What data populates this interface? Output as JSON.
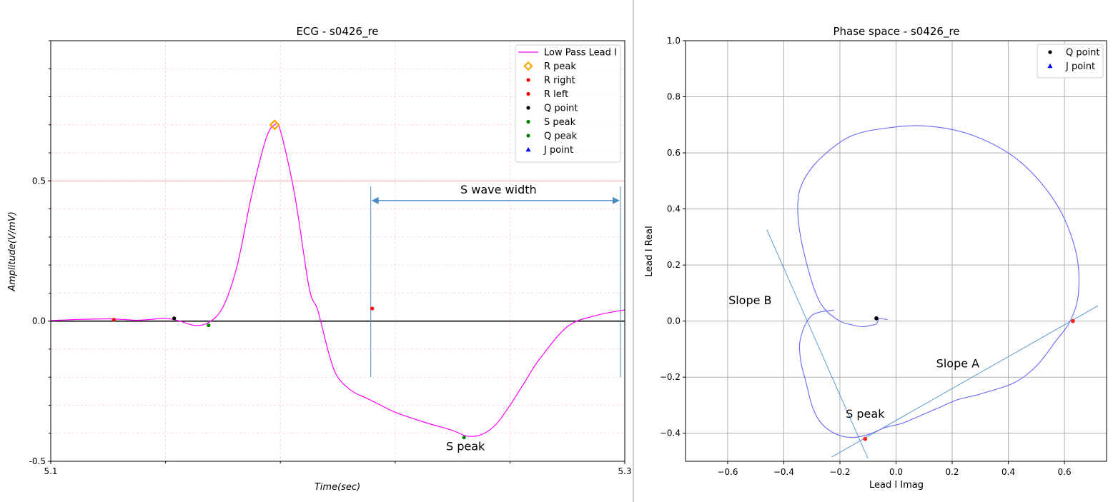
{
  "chart_data": [
    {
      "type": "line",
      "title": "ECG - s0426_re",
      "xlabel": "Time(sec)",
      "ylabel": "Amplitude(V/mV)",
      "xlim": [
        5.1,
        5.3
      ],
      "ylim": [
        -0.5,
        1.0
      ],
      "xticks": [
        "5.1",
        "5.3"
      ],
      "yticks": [
        "-0.5",
        "0.0",
        "0.5"
      ],
      "grid": true,
      "legend_position": "top-right",
      "series": [
        {
          "name": "Low Pass Lead I",
          "color": "#ff00ff",
          "style": "line",
          "x": [
            5.1,
            5.11,
            5.12,
            5.125,
            5.13,
            5.135,
            5.14,
            5.145,
            5.15,
            5.155,
            5.16,
            5.165,
            5.17,
            5.175,
            5.178,
            5.18,
            5.185,
            5.19,
            5.193,
            5.197,
            5.2,
            5.205,
            5.21,
            5.215,
            5.22,
            5.23,
            5.24,
            5.245,
            5.25,
            5.255,
            5.26,
            5.265,
            5.27,
            5.28,
            5.29,
            5.3
          ],
          "y": [
            0.002,
            0.006,
            0.008,
            0.006,
            0.003,
            0.006,
            0.01,
            0.0,
            -0.015,
            -0.005,
            0.05,
            0.2,
            0.45,
            0.65,
            0.7,
            0.68,
            0.45,
            0.12,
            0.04,
            -0.12,
            -0.2,
            -0.25,
            -0.275,
            -0.3,
            -0.325,
            -0.36,
            -0.39,
            -0.41,
            -0.405,
            -0.37,
            -0.3,
            -0.22,
            -0.14,
            -0.02,
            0.02,
            0.04
          ]
        },
        {
          "name": "R peak",
          "color": "#ffa500",
          "style": "diamond",
          "x": [
            5.178
          ],
          "y": [
            0.7
          ]
        },
        {
          "name": "R right",
          "color": "#ff0000",
          "style": "dot",
          "x": [
            5.212
          ],
          "y": [
            0.045
          ]
        },
        {
          "name": "R left",
          "color": "#ff0000",
          "style": "dot",
          "x": [
            5.122
          ],
          "y": [
            0.005
          ]
        },
        {
          "name": "Q point",
          "color": "#000000",
          "style": "dot",
          "x": [
            5.143
          ],
          "y": [
            0.01
          ]
        },
        {
          "name": "S peak",
          "color": "#008000",
          "style": "dot",
          "x": [
            5.244
          ],
          "y": [
            -0.415
          ]
        },
        {
          "name": "Q peak",
          "color": "#008000",
          "style": "dot",
          "x": [
            5.155
          ],
          "y": [
            -0.015
          ]
        },
        {
          "name": "J point",
          "color": "#0000ff",
          "style": "triangle",
          "x": [],
          "y": []
        }
      ],
      "hlines": [
        {
          "y": 0.0,
          "color": "#000000"
        },
        {
          "y": 0.5,
          "color": "#ff9999"
        }
      ],
      "vlines": [
        {
          "x": 5.2115,
          "y0": -0.2,
          "y1": 0.48
        },
        {
          "x": 5.2985,
          "y0": -0.2,
          "y1": 0.48
        }
      ],
      "annotations": [
        {
          "text": "S wave width",
          "x": 5.256,
          "y": 0.455,
          "arrow_from": 5.2115,
          "arrow_to": 5.2985,
          "arrow_y": 0.43
        },
        {
          "text": "S peak",
          "x": 5.2445,
          "y": -0.46
        }
      ]
    },
    {
      "type": "line",
      "title": "Phase space - s0426_re",
      "xlabel": "Lead I Imag",
      "ylabel": "Lead I Real",
      "xlim": [
        -0.75,
        0.75
      ],
      "ylim": [
        -0.5,
        1.0
      ],
      "xticks": [
        "−0.6",
        "−0.4",
        "−0.2",
        "0.0",
        "0.2",
        "0.4",
        "0.6"
      ],
      "yticks": [
        "−0.4",
        "−0.2",
        "0.0",
        "0.2",
        "0.4",
        "0.6",
        "0.8",
        "1.0"
      ],
      "grid": true,
      "legend_position": "top-right",
      "series": [
        {
          "name": "",
          "color": "#6666ff",
          "style": "line",
          "x": [
            -0.03,
            -0.06,
            -0.07,
            -0.09,
            -0.12,
            -0.15,
            -0.2,
            -0.26,
            -0.3,
            -0.34,
            -0.35,
            -0.33,
            -0.27,
            -0.16,
            -0.02,
            0.12,
            0.28,
            0.44,
            0.57,
            0.64,
            0.65,
            0.62,
            0.57,
            0.5,
            0.42,
            0.3,
            0.22,
            0.15,
            0.08,
            0.02,
            -0.04,
            -0.1,
            -0.16,
            -0.22,
            -0.27,
            -0.3,
            -0.32,
            -0.34,
            -0.34,
            -0.3,
            -0.22
          ],
          "y": [
            0.005,
            0.008,
            -0.01,
            -0.015,
            -0.02,
            -0.015,
            0.0,
            0.05,
            0.14,
            0.3,
            0.42,
            0.5,
            0.58,
            0.66,
            0.69,
            0.695,
            0.66,
            0.57,
            0.42,
            0.25,
            0.1,
            0.0,
            -0.07,
            -0.16,
            -0.22,
            -0.26,
            -0.28,
            -0.31,
            -0.34,
            -0.365,
            -0.38,
            -0.405,
            -0.415,
            -0.4,
            -0.36,
            -0.3,
            -0.22,
            -0.14,
            -0.06,
            0.02,
            0.04
          ]
        },
        {
          "name": "Q point",
          "color": "#000000",
          "style": "dot",
          "x": [
            -0.07
          ],
          "y": [
            0.01
          ]
        },
        {
          "name": "J point",
          "color": "#0000ff",
          "style": "triangle",
          "x": [],
          "y": []
        },
        {
          "name": "",
          "color": "#ff2020",
          "style": "dot",
          "x": [
            0.63,
            -0.11
          ],
          "y": [
            0.0,
            -0.42
          ]
        }
      ],
      "lines": [
        {
          "name": "Slope A",
          "x": [
            -0.23,
            0.72
          ],
          "y": [
            -0.485,
            0.055
          ]
        },
        {
          "name": "Slope B",
          "x": [
            -0.46,
            -0.1
          ],
          "y": [
            0.325,
            -0.49
          ]
        }
      ],
      "annotations": [
        {
          "text": "Slope A",
          "x": 0.22,
          "y": -0.165
        },
        {
          "text": "Slope B",
          "x": -0.52,
          "y": 0.06
        },
        {
          "text": "S peak",
          "x": -0.11,
          "y": -0.345
        }
      ]
    }
  ]
}
